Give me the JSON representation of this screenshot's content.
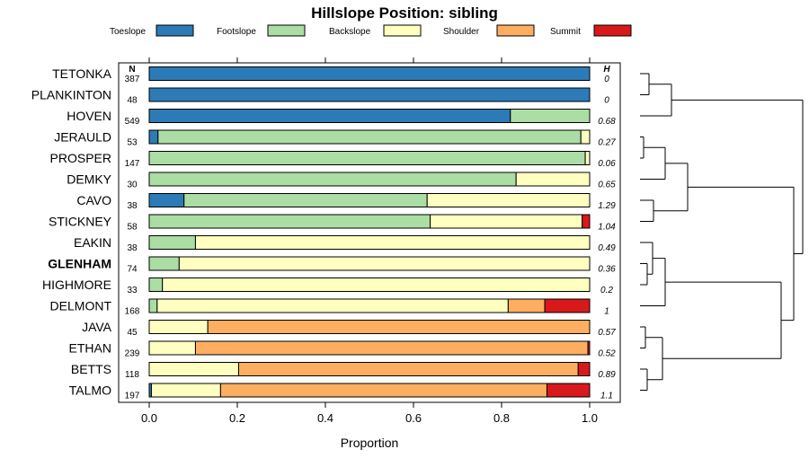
{
  "chart_data": {
    "type": "bar",
    "stacked": true,
    "orientation": "horizontal",
    "title": "Hillslope Position: sibling",
    "xlabel": "Proportion",
    "ylabel": "",
    "xlim": [
      0,
      1
    ],
    "xticks": [
      "0.0",
      "0.2",
      "0.4",
      "0.6",
      "0.8",
      "1.0"
    ],
    "n_header": "N",
    "h_header": "H",
    "legend_position": "top",
    "series": [
      {
        "name": "Toeslope",
        "color": "#2c7bb6"
      },
      {
        "name": "Footslope",
        "color": "#abdda4"
      },
      {
        "name": "Backslope",
        "color": "#ffffbf"
      },
      {
        "name": "Shoulder",
        "color": "#fdae61"
      },
      {
        "name": "Summit",
        "color": "#d7191c"
      }
    ],
    "rows": [
      {
        "name": "TETONKA",
        "bold": false,
        "n": "387",
        "h": "0",
        "values": [
          1.0,
          0,
          0,
          0,
          0
        ]
      },
      {
        "name": "PLANKINTON",
        "bold": false,
        "n": "48",
        "h": "0",
        "values": [
          1.0,
          0,
          0,
          0,
          0
        ]
      },
      {
        "name": "HOVEN",
        "bold": false,
        "n": "549",
        "h": "0.68",
        "values": [
          0.82,
          0.18,
          0,
          0,
          0
        ]
      },
      {
        "name": "JERAULD",
        "bold": false,
        "n": "53",
        "h": "0.27",
        "values": [
          0.02,
          0.96,
          0.02,
          0,
          0
        ]
      },
      {
        "name": "PROSPER",
        "bold": false,
        "n": "147",
        "h": "0.06",
        "values": [
          0,
          0.99,
          0.01,
          0,
          0
        ]
      },
      {
        "name": "DEMKY",
        "bold": false,
        "n": "30",
        "h": "0.65",
        "values": [
          0,
          0.833,
          0.167,
          0,
          0
        ]
      },
      {
        "name": "CAVO",
        "bold": false,
        "n": "38",
        "h": "1.29",
        "values": [
          0.079,
          0.552,
          0.369,
          0,
          0
        ]
      },
      {
        "name": "STICKNEY",
        "bold": false,
        "n": "58",
        "h": "1.04",
        "values": [
          0,
          0.638,
          0.345,
          0,
          0.017
        ]
      },
      {
        "name": "EAKIN",
        "bold": false,
        "n": "38",
        "h": "0.49",
        "values": [
          0,
          0.105,
          0.895,
          0,
          0
        ]
      },
      {
        "name": "GLENHAM",
        "bold": true,
        "n": "74",
        "h": "0.36",
        "values": [
          0,
          0.068,
          0.932,
          0,
          0
        ]
      },
      {
        "name": "HIGHMORE",
        "bold": false,
        "n": "33",
        "h": "0.2",
        "values": [
          0,
          0.03,
          0.97,
          0,
          0
        ]
      },
      {
        "name": "DELMONT",
        "bold": false,
        "n": "168",
        "h": "1",
        "values": [
          0,
          0.018,
          0.797,
          0.083,
          0.102
        ]
      },
      {
        "name": "JAVA",
        "bold": false,
        "n": "45",
        "h": "0.57",
        "values": [
          0,
          0,
          0.133,
          0.867,
          0
        ]
      },
      {
        "name": "ETHAN",
        "bold": false,
        "n": "239",
        "h": "0.52",
        "values": [
          0,
          0,
          0.105,
          0.891,
          0.004
        ]
      },
      {
        "name": "BETTS",
        "bold": false,
        "n": "118",
        "h": "0.89",
        "values": [
          0,
          0,
          0.203,
          0.771,
          0.026
        ]
      },
      {
        "name": "TALMO",
        "bold": false,
        "n": "197",
        "h": "1.1",
        "values": [
          0.005,
          0,
          0.157,
          0.741,
          0.097
        ]
      }
    ]
  }
}
